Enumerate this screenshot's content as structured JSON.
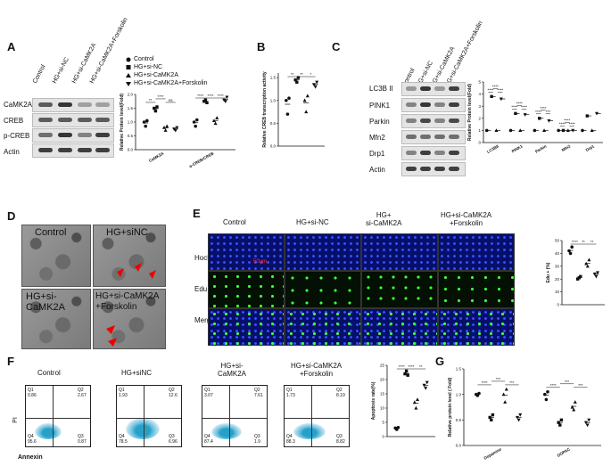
{
  "panels": {
    "A": {
      "letter": "A",
      "lanes": [
        "Control",
        "HG+si-NC",
        "HG+si-CaMK2A",
        "HG+si-CaMK2A+Forskolin"
      ],
      "proteins": [
        "CaMK2A",
        "CREB",
        "p-CREB",
        "Actin"
      ],
      "legend": [
        "Control",
        "HG+si-NC",
        "HG+si-CaMK2A",
        "HG+si-CaMK2A+Forskolin"
      ]
    },
    "B": {
      "letter": "B"
    },
    "C": {
      "letter": "C",
      "lanes": [
        "Control",
        "HG+si-NC",
        "HG+si-CaMK2A",
        "HG+si-CaMK2A+Forskolin"
      ],
      "proteins": [
        "LC3B II",
        "PINK1",
        "Parkin",
        "Mfn2",
        "Drp1",
        "Actin"
      ]
    },
    "D": {
      "letter": "D",
      "labels": [
        "Control",
        "HG+siNC",
        "HG+si-\nCaMK2A",
        "HG+si-CaMK2A\n+Forskolin"
      ]
    },
    "E": {
      "letter": "E",
      "cols": [
        "Control",
        "HG+si-NC",
        "HG+\nsi-CaMK2A",
        "HG+si-CaMK2A\n+Forskolin"
      ],
      "rows": [
        "Hochest",
        "Edu",
        "Merge"
      ],
      "scale_bar": "50μm"
    },
    "F": {
      "letter": "F",
      "titles": [
        "Control",
        "HG+siNC",
        "HG+si-\nCaMK2A",
        "HG+si-CaMK2A\n+Forskolin"
      ],
      "xlabel": "Annexin",
      "ylabel": "PI",
      "quadrants": [
        {
          "Q1": "0.86",
          "Q2": "2.67",
          "Q4": "95.6",
          "Q3": "0.87"
        },
        {
          "Q1": "1.93",
          "Q2": "12.6",
          "Q4": "78.5",
          "Q3": "6.96"
        },
        {
          "Q1": "3.07",
          "Q2": "7.61",
          "Q4": "87.4",
          "Q3": "1.9"
        },
        {
          "Q1": "1.73",
          "Q2": "8.19",
          "Q4": "88.3",
          "Q3": "8.82"
        }
      ]
    },
    "G": {
      "letter": "G"
    }
  },
  "chart_data": [
    {
      "panel": "A",
      "type": "scatter",
      "ylabel": "Relative Protein level(Fold)",
      "ylim": [
        0,
        2.0
      ],
      "categories": [
        "CaMK2A",
        "p-CREB/CREB"
      ],
      "series": [
        {
          "name": "Control",
          "values": [
            [
              1.0,
              0.85,
              1.05
            ],
            [
              1.0,
              0.85,
              1.08
            ]
          ]
        },
        {
          "name": "HG+si-NC",
          "values": [
            [
              1.5,
              1.4,
              1.55
            ],
            [
              1.75,
              1.8,
              1.7
            ]
          ]
        },
        {
          "name": "HG+si-CaMK2A",
          "values": [
            [
              0.8,
              0.7,
              0.85
            ],
            [
              1.05,
              0.95,
              1.15
            ]
          ]
        },
        {
          "name": "HG+si-CaMK2A+Forskolin",
          "values": [
            [
              0.75,
              0.7,
              0.8
            ],
            [
              1.8,
              1.75,
              1.9
            ]
          ]
        }
      ],
      "ticks": [
        "0.0",
        "0.5",
        "1.0",
        "1.5",
        "2.0"
      ],
      "annotations": [
        "**",
        "****",
        "ns",
        "****",
        "****",
        "****"
      ]
    },
    {
      "panel": "B",
      "type": "scatter",
      "ylabel": "Relative CREB transcription activity",
      "ylim": [
        0,
        1.6
      ],
      "ticks": [
        "0.0",
        "0.5",
        "1.0",
        "1.5"
      ],
      "series": [
        {
          "name": "Control",
          "values": [
            1.0,
            0.7,
            1.05
          ]
        },
        {
          "name": "HG+si-NC",
          "values": [
            1.45,
            1.4,
            1.5
          ]
        },
        {
          "name": "HG+si-CaMK2A",
          "values": [
            1.0,
            0.75,
            1.1
          ]
        },
        {
          "name": "HG+si-CaMK2A+Forskolin",
          "values": [
            1.35,
            1.3,
            1.4
          ]
        }
      ],
      "annotations": [
        "**",
        "**",
        "*"
      ]
    },
    {
      "panel": "C",
      "type": "scatter",
      "ylabel": "Relative Protein level(Fold)",
      "ylim": [
        0,
        5
      ],
      "ticks": [
        "0",
        "1",
        "2",
        "3",
        "4",
        "5"
      ],
      "categories": [
        "LC3BII",
        "PINK1",
        "Parkin",
        "Mfn2",
        "Drp1"
      ],
      "series": [
        {
          "name": "Control",
          "values": [
            1.0,
            1.0,
            1.0,
            1.0,
            1.0
          ]
        },
        {
          "name": "HG+si-NC",
          "values": [
            3.8,
            2.4,
            2.0,
            1.0,
            2.2
          ]
        },
        {
          "name": "HG+si-CaMK2A",
          "values": [
            1.0,
            1.0,
            1.0,
            1.0,
            1.0
          ]
        },
        {
          "name": "HG+si-CaMK2A+Forskolin",
          "values": [
            3.6,
            2.3,
            1.8,
            1.0,
            2.4
          ]
        }
      ],
      "annotations": [
        "****",
        "****",
        "****",
        "****",
        "****",
        "****",
        "****",
        "****",
        "***",
        "****",
        "****",
        "****"
      ]
    },
    {
      "panel": "E",
      "type": "scatter",
      "ylabel": "Edu + (%)",
      "ylim": [
        0,
        50
      ],
      "ticks": [
        "0",
        "10",
        "20",
        "30",
        "40",
        "50"
      ],
      "series": [
        {
          "name": "Control",
          "values": [
            42,
            40,
            45
          ]
        },
        {
          "name": "HG+si-NC",
          "values": [
            20,
            21,
            22
          ]
        },
        {
          "name": "HG+si-CaMK2A",
          "values": [
            32,
            30,
            35
          ]
        },
        {
          "name": "HG+si-CaMK2A+Forskolin",
          "values": [
            24,
            22,
            25
          ]
        }
      ],
      "annotations": [
        "****",
        "**",
        "**"
      ]
    },
    {
      "panel": "F",
      "type": "scatter",
      "ylabel": "Apoptosis rate(%)",
      "ylim": [
        0,
        25
      ],
      "ticks": [
        "0",
        "5",
        "10",
        "15",
        "20",
        "25"
      ],
      "series": [
        {
          "name": "Control",
          "values": [
            3,
            2.5,
            3.2
          ]
        },
        {
          "name": "HG+siNC",
          "values": [
            22,
            23,
            21.5
          ]
        },
        {
          "name": "HG+si-CaMK2A",
          "values": [
            12,
            10,
            13
          ]
        },
        {
          "name": "HG+si-CaMK2A+Forskolin",
          "values": [
            18,
            17,
            19
          ]
        }
      ],
      "annotations": [
        "****",
        "****",
        "**"
      ]
    },
    {
      "panel": "G",
      "type": "scatter",
      "ylabel": "Relative protein level ( Fold)",
      "ylim": [
        0,
        1.5
      ],
      "ticks": [
        "0.0",
        "0.5",
        "1.0",
        "1.5"
      ],
      "categories": [
        "Dopamine",
        "DOPAC"
      ],
      "series": [
        {
          "name": "Control",
          "values": [
            [
              1.0,
              0.98,
              1.02
            ],
            [
              1.0,
              0.9,
              1.05
            ]
          ]
        },
        {
          "name": "HG+si-NC",
          "values": [
            [
              0.55,
              0.5,
              0.6
            ],
            [
              0.45,
              0.4,
              0.5
            ]
          ]
        },
        {
          "name": "HG+si-CaMK2A",
          "values": [
            [
              1.0,
              0.85,
              1.1
            ],
            [
              0.75,
              0.7,
              0.85
            ]
          ]
        },
        {
          "name": "HG+si-CaMK2A+Forskolin",
          "values": [
            [
              0.55,
              0.5,
              0.6
            ],
            [
              0.45,
              0.4,
              0.5
            ]
          ]
        }
      ],
      "annotations": [
        "****",
        "***",
        "***",
        "****",
        "***",
        "***"
      ]
    }
  ]
}
